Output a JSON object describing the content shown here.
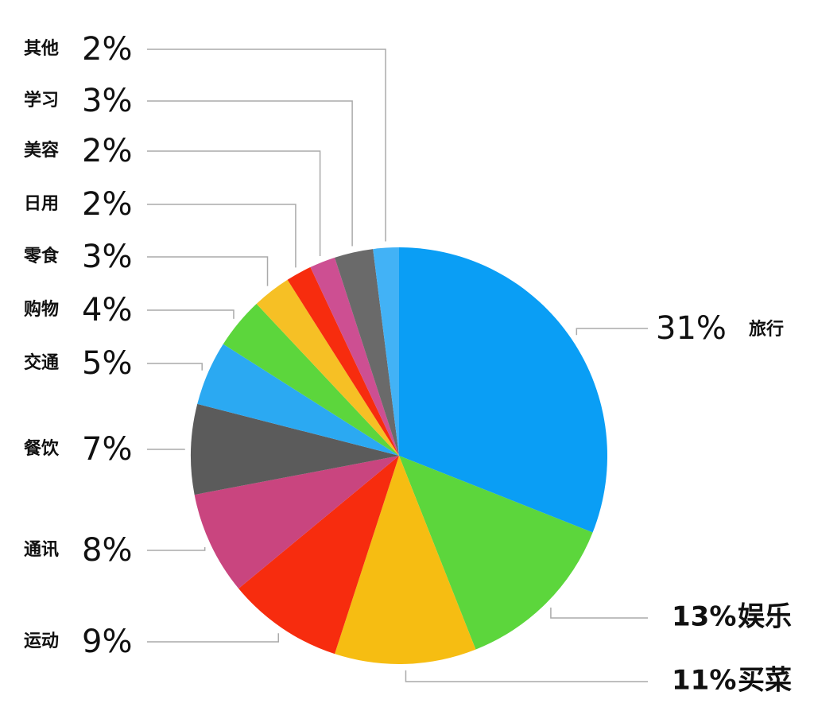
{
  "chart_data": {
    "type": "pie",
    "categories": [
      "旅行",
      "娱乐",
      "买菜",
      "运动",
      "通讯",
      "餐饮",
      "交通",
      "购物",
      "零食",
      "日用",
      "美容",
      "学习",
      "其他"
    ],
    "values": [
      31,
      13,
      11,
      9,
      8,
      7,
      5,
      4,
      3,
      2,
      2,
      3,
      2
    ],
    "value_labels": [
      "31%",
      "13%",
      "11%",
      "9%",
      "8%",
      "7%",
      "5%",
      "4%",
      "3%",
      "2%",
      "2%",
      "3%",
      "2%"
    ],
    "colors": [
      "#0a9ef5",
      "#5cd63c",
      "#f6bd12",
      "#f72c0e",
      "#c9457f",
      "#5b5b5b",
      "#2ba9f2",
      "#5cd63c",
      "#f6c025",
      "#f72c0e",
      "#cd4f92",
      "#6a6a6a",
      "#42b2f6"
    ]
  }
}
